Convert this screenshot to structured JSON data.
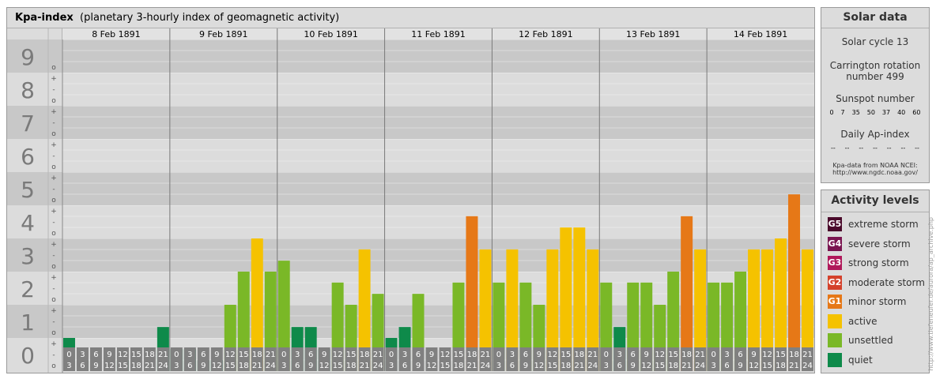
{
  "chart_data": {
    "type": "bar",
    "title": "Kpa-index",
    "subtitle": "(planetary 3-hourly index of geomagnetic activity)",
    "y_levels": [
      "0",
      "1",
      "2",
      "3",
      "4",
      "5",
      "6",
      "7",
      "8",
      "9"
    ],
    "ylim": [
      0,
      9
    ],
    "minor_tick_labels": [
      "o",
      "-",
      "+"
    ],
    "days": [
      "8 Feb 1891",
      "9 Feb 1891",
      "10 Feb 1891",
      "11 Feb 1891",
      "12 Feb 1891",
      "13 Feb 1891",
      "14 Feb 1891"
    ],
    "intervals_top": [
      "0",
      "3",
      "6",
      "9",
      "12",
      "15",
      "18",
      "21"
    ],
    "intervals_bottom": [
      "3",
      "6",
      "9",
      "12",
      "15",
      "18",
      "21",
      "24"
    ],
    "values": [
      [
        1.0,
        0.33,
        0,
        0,
        0.33,
        0,
        0,
        1.33
      ],
      [
        0.67,
        0.67,
        0.33,
        0.33,
        2.0,
        3.0,
        4.0,
        3.0
      ],
      [
        3.33,
        1.33,
        1.33,
        0.67,
        2.67,
        2.0,
        3.67,
        2.33
      ],
      [
        1.0,
        1.33,
        2.33,
        0.67,
        0.33,
        2.67,
        4.67,
        3.67
      ],
      [
        2.67,
        3.67,
        2.67,
        2.0,
        3.67,
        4.33,
        4.33,
        3.67
      ],
      [
        2.67,
        1.33,
        2.67,
        2.67,
        2.0,
        3.0,
        4.67,
        3.67
      ],
      [
        2.67,
        2.67,
        3.0,
        3.67,
        3.67,
        4.0,
        5.33,
        3.67
      ]
    ],
    "colors": {
      "quiet": "#0e8a4a",
      "unsettled": "#7ab827",
      "active": "#f5c200",
      "G1": "#e67817",
      "G2": "#d4412b",
      "G3": "#b0185a",
      "G4": "#7a1550",
      "G5": "#4a0a2b"
    }
  },
  "solar": {
    "title": "Solar data",
    "cycle": "Solar cycle 13",
    "carrington_line1": "Carrington rotation",
    "carrington_line2": "number 499",
    "sunspot_label": "Sunspot number",
    "sunspot_values": [
      "0",
      "7",
      "35",
      "50",
      "37",
      "40",
      "60"
    ],
    "ap_label": "Daily Ap-index",
    "ap_values": [
      "--",
      "--",
      "--",
      "--",
      "--",
      "--",
      "--"
    ],
    "source_line1": "Kpa-data from NOAA NCEI:",
    "source_line2": "http://www.ngdc.noaa.gov/"
  },
  "legend": {
    "title": "Activity levels",
    "items": [
      {
        "code": "G5",
        "label": "extreme storm",
        "color": "#4a0a2b"
      },
      {
        "code": "G4",
        "label": "severe storm",
        "color": "#7a1550"
      },
      {
        "code": "G3",
        "label": "strong storm",
        "color": "#b0185a"
      },
      {
        "code": "G2",
        "label": "moderate storm",
        "color": "#d4412b"
      },
      {
        "code": "G1",
        "label": "minor storm",
        "color": "#e67817"
      },
      {
        "code": "",
        "label": "active",
        "color": "#f5c200"
      },
      {
        "code": "",
        "label": "unsettled",
        "color": "#7ab827"
      },
      {
        "code": "",
        "label": "quiet",
        "color": "#0e8a4a"
      }
    ]
  },
  "credit": "http://www.tiefeneufer.de/aurora/ap_archive.php"
}
